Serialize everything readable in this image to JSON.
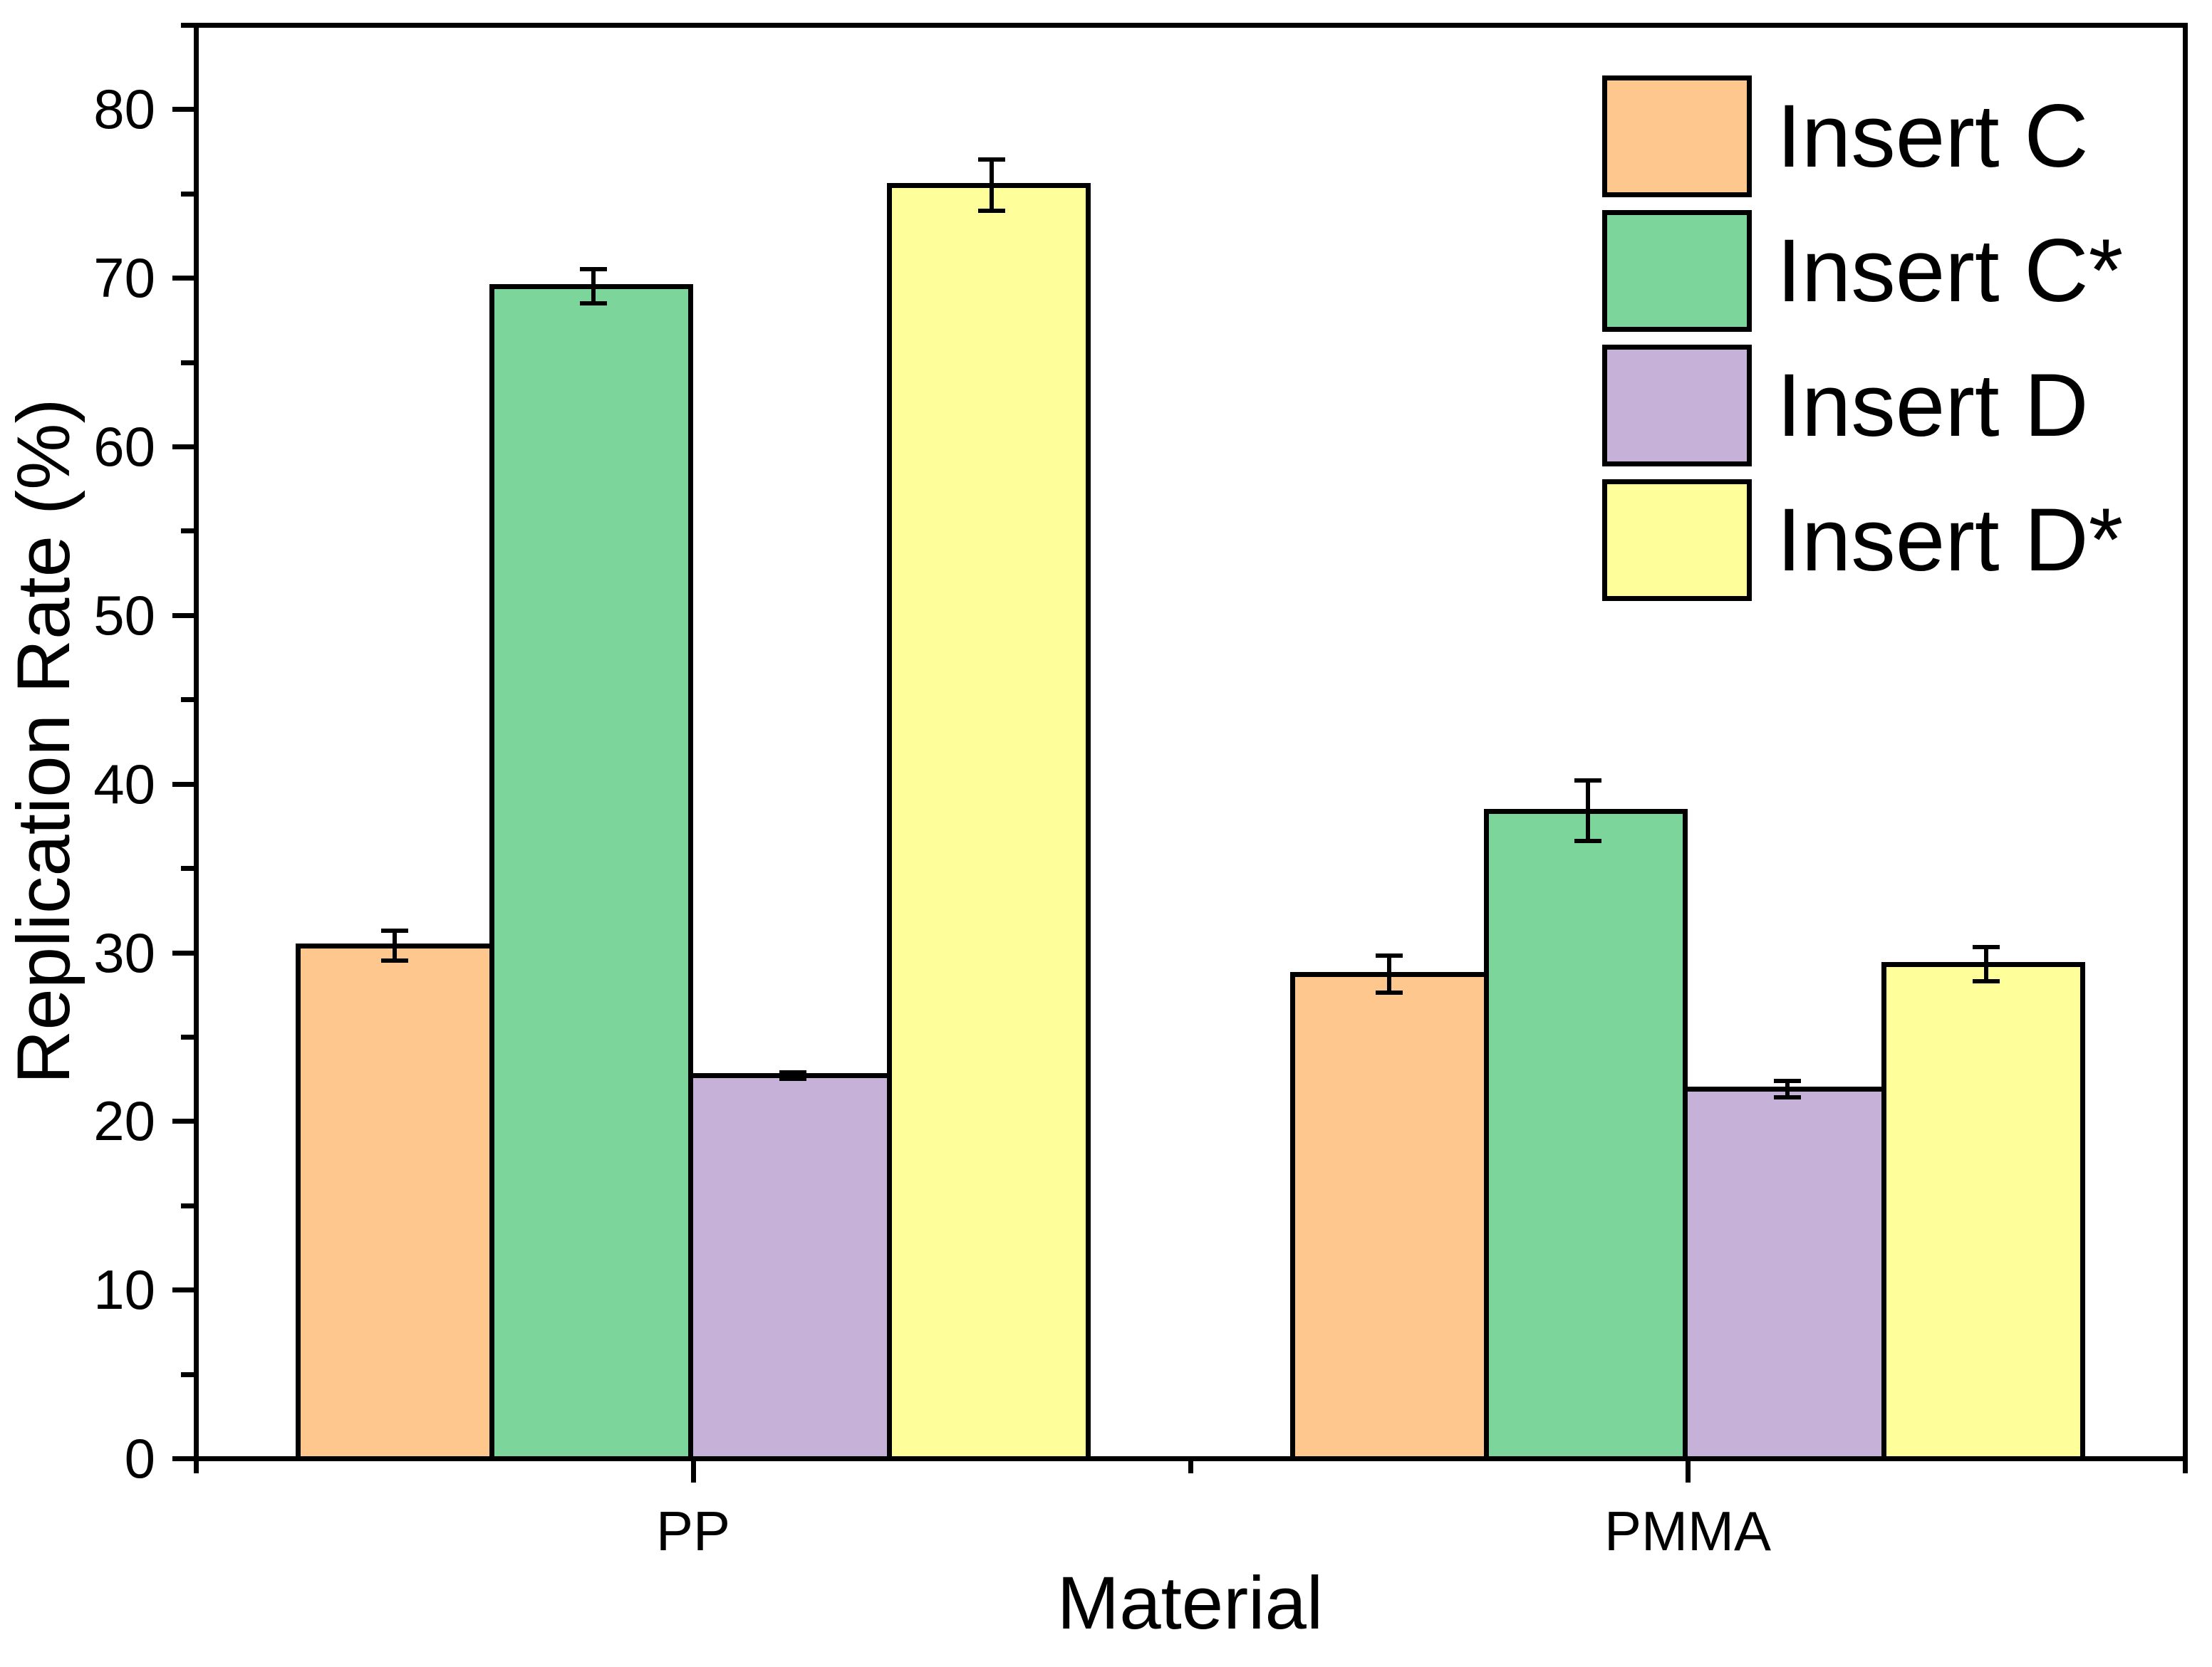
{
  "chart_data": {
    "type": "bar",
    "title": "",
    "xlabel": "Material",
    "ylabel": "Replication Rate (%)",
    "categories": [
      "PP",
      "PMMA"
    ],
    "series": [
      {
        "name": "Insert C",
        "color": "#FEC78E",
        "values": [
          30.4,
          28.7
        ],
        "errors": [
          0.9,
          1.1
        ]
      },
      {
        "name": "Insert C*",
        "color": "#7CD69B",
        "values": [
          69.5,
          38.4
        ],
        "errors": [
          1.0,
          1.8
        ]
      },
      {
        "name": "Insert D",
        "color": "#C6B1D8",
        "values": [
          22.7,
          21.9
        ],
        "errors": [
          0.2,
          0.5
        ]
      },
      {
        "name": "Insert D*",
        "color": "#FEFE9B",
        "values": [
          75.5,
          29.3
        ],
        "errors": [
          1.5,
          1.0
        ]
      }
    ],
    "ylim": [
      0,
      85
    ],
    "yticks": [
      0,
      10,
      20,
      30,
      40,
      50,
      60,
      70,
      80
    ],
    "yminor_step": 5,
    "grid": false,
    "legend_position": "top-right",
    "axis_color": "#000000",
    "bar_edge_color": "#000000",
    "error_bar_color": "#000000",
    "background_color": "#ffffff"
  }
}
